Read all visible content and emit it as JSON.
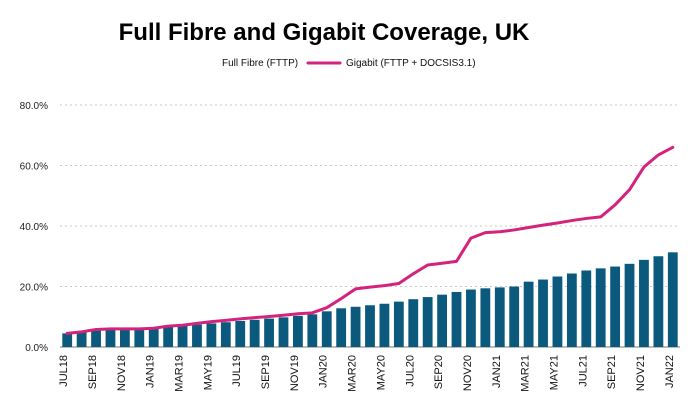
{
  "chart_data": {
    "type": "bar",
    "title": "Full Fibre and Gigabit Coverage, UK",
    "xlabel": "",
    "ylabel": "",
    "ylim": [
      0,
      80
    ],
    "yticks": [
      "0.0%",
      "20.0%",
      "40.0%",
      "60.0%",
      "80.0%"
    ],
    "grid": true,
    "legend": "top",
    "x_tick_labels": [
      "JUL18",
      "SEP18",
      "NOV18",
      "JAN19",
      "MAR19",
      "MAY19",
      "JUL19",
      "SEP19",
      "NOV19",
      "JAN20",
      "MAR20",
      "MAY20",
      "JUL20",
      "SEP20",
      "NOV20",
      "JAN21",
      "MAR21",
      "MAY21",
      "JUL21",
      "SEP21",
      "NOV21",
      "JAN22"
    ],
    "categories": [
      "JUL18",
      "AUG18",
      "SEP18",
      "OCT18",
      "NOV18",
      "DEC18",
      "JAN19",
      "FEB19",
      "MAR19",
      "APR19",
      "MAY19",
      "JUN19",
      "JUL19",
      "AUG19",
      "SEP19",
      "OCT19",
      "NOV19",
      "DEC19",
      "JAN20",
      "FEB20",
      "MAR20",
      "APR20",
      "MAY20",
      "JUN20",
      "JUL20",
      "AUG20",
      "SEP20",
      "OCT20",
      "NOV20",
      "DEC20",
      "JAN21",
      "FEB21",
      "MAR21",
      "APR21",
      "MAY21",
      "JUN21",
      "JUL21",
      "AUG21",
      "SEP21",
      "OCT21",
      "NOV21",
      "DEC21",
      "JAN22"
    ],
    "series": [
      {
        "name": "Full Fibre (FTTP)",
        "kind": "bar",
        "color": "#0b5a7e",
        "values": [
          4.5,
          5,
          5.5,
          5.8,
          6.0,
          6.1,
          6.3,
          6.6,
          7.0,
          7.4,
          7.8,
          8.2,
          8.6,
          9.0,
          9.4,
          9.8,
          10.3,
          10.8,
          11.8,
          12.8,
          13.3,
          13.8,
          14.3,
          15.0,
          15.8,
          16.5,
          17.3,
          18.2,
          19.0,
          19.4,
          19.7,
          20.0,
          21.6,
          22.3,
          23.3,
          24.3,
          25.3,
          26.0,
          26.6,
          27.5,
          28.8,
          30.0,
          31.3
        ]
      },
      {
        "name": "Gigabit (FTTP + DOCSIS3.1)",
        "kind": "line",
        "color": "#d4237c",
        "values": [
          4.5,
          5,
          5.8,
          6.0,
          6.0,
          6.0,
          6.2,
          6.9,
          7.2,
          7.8,
          8.4,
          8.8,
          9.3,
          9.7,
          10.1,
          10.5,
          11.0,
          11.3,
          13.0,
          16.0,
          19.2,
          19.8,
          20.3,
          21.0,
          24.2,
          27.1,
          27.7,
          28.3,
          36.0,
          37.8,
          38.1,
          38.7,
          39.5,
          40.3,
          41.0,
          41.8,
          42.5,
          43.0,
          47.0,
          52.0,
          59.5,
          63.5,
          66.0
        ]
      }
    ]
  }
}
